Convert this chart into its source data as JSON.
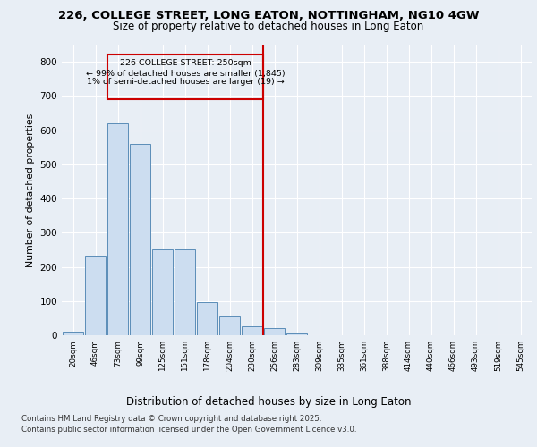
{
  "title_line1": "226, COLLEGE STREET, LONG EATON, NOTTINGHAM, NG10 4GW",
  "title_line2": "Size of property relative to detached houses in Long Eaton",
  "xlabel": "Distribution of detached houses by size in Long Eaton",
  "ylabel": "Number of detached properties",
  "categories": [
    "20sqm",
    "46sqm",
    "73sqm",
    "99sqm",
    "125sqm",
    "151sqm",
    "178sqm",
    "204sqm",
    "230sqm",
    "256sqm",
    "283sqm",
    "309sqm",
    "335sqm",
    "361sqm",
    "388sqm",
    "414sqm",
    "440sqm",
    "466sqm",
    "493sqm",
    "519sqm",
    "545sqm"
  ],
  "values": [
    10,
    232,
    620,
    560,
    252,
    252,
    97,
    55,
    27,
    22,
    5,
    0,
    0,
    0,
    0,
    0,
    0,
    0,
    0,
    0,
    0
  ],
  "bar_color": "#ccddf0",
  "bar_edge_color": "#5b8db8",
  "vline_color": "#cc0000",
  "annotation_box_color": "#cc0000",
  "bg_color": "#e8eef5",
  "plot_bg_color": "#e8eef5",
  "grid_color": "#ffffff",
  "ylim": [
    0,
    850
  ],
  "yticks": [
    0,
    100,
    200,
    300,
    400,
    500,
    600,
    700,
    800
  ],
  "footnote_line1": "Contains HM Land Registry data © Crown copyright and database right 2025.",
  "footnote_line2": "Contains public sector information licensed under the Open Government Licence v3.0."
}
